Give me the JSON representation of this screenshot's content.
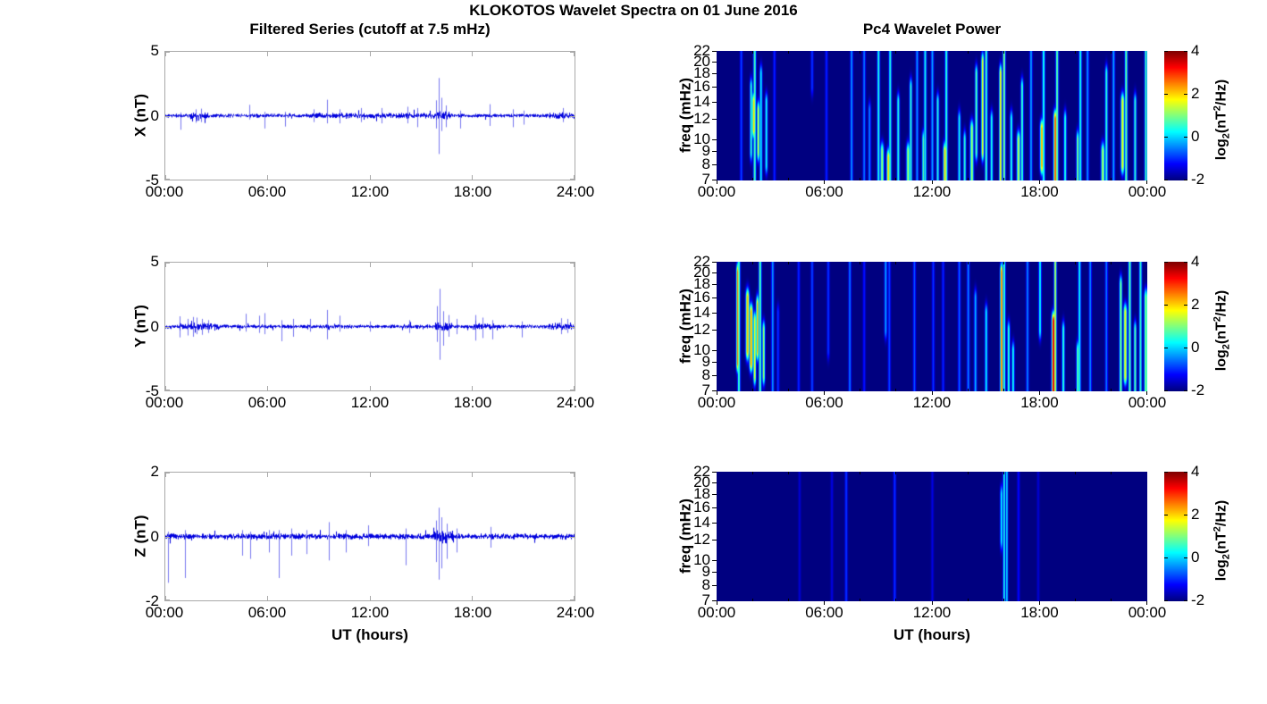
{
  "figure": {
    "title": "KLOKOTOS Wavelet Spectra on 01 June 2016",
    "left_column_title": "Filtered Series (cutoff at 7.5 mHz)",
    "right_column_title": "Pc4 Wavelet Power",
    "xlabel_left": "UT (hours)",
    "xlabel_right": "UT (hours)",
    "colorbar_label": {
      "prefix": "log",
      "sub": "2",
      "mid": "(nT",
      "sup": "2",
      "suffix": "/Hz)"
    },
    "colors": {
      "trace": "#0000dd",
      "spike": "#5050eb",
      "heat_background": "#000090",
      "axis_frame": "#a9a9a9",
      "tick_text": "#000000"
    }
  },
  "chart_data": [
    {
      "type": "line",
      "id": "x-filtered",
      "ylabel": "X (nT)",
      "ylim": [
        -5,
        5
      ],
      "yticks": [
        5,
        0,
        -5
      ],
      "x_range_hours": [
        0,
        24
      ],
      "xticklabels": [
        "00:00",
        "06:00",
        "12:00",
        "18:00",
        "24:00"
      ],
      "seed": 11,
      "noise_amp": 0.09,
      "burst_format": "[t_start_h, t_end_h, amp_factor]",
      "bursts": [
        [
          1.4,
          2.6,
          1.8
        ],
        [
          8.5,
          15.6,
          1.5
        ],
        [
          15.7,
          16.7,
          2.2
        ],
        [
          22.4,
          24,
          1.7
        ]
      ],
      "spike_format": "[t_hours, up_nT, down_nT]",
      "spikes": [
        [
          0.9,
          0.25,
          1.1
        ],
        [
          1.8,
          0.5,
          0.55
        ],
        [
          2.1,
          0.55,
          0.5
        ],
        [
          4.9,
          0.85,
          0.3
        ],
        [
          5.8,
          0.3,
          1.0
        ],
        [
          7.0,
          0.3,
          0.85
        ],
        [
          8.7,
          0.5,
          0.5
        ],
        [
          9.5,
          1.25,
          0.6
        ],
        [
          10.2,
          0.5,
          0.6
        ],
        [
          11.5,
          0.6,
          0.5
        ],
        [
          12.7,
          0.6,
          0.6
        ],
        [
          14.2,
          0.7,
          0.6
        ],
        [
          14.8,
          0.6,
          0.9
        ],
        [
          15.9,
          1.2,
          1.0
        ],
        [
          16.05,
          2.95,
          3.0
        ],
        [
          16.2,
          1.4,
          1.2
        ],
        [
          16.45,
          0.8,
          0.9
        ],
        [
          17.3,
          0.4,
          1.0
        ],
        [
          19.0,
          0.9,
          0.8
        ],
        [
          20.4,
          0.5,
          0.9
        ],
        [
          21.0,
          0.4,
          0.7
        ],
        [
          23.3,
          0.6,
          0.5
        ]
      ]
    },
    {
      "type": "line",
      "id": "y-filtered",
      "ylabel": "Y (nT)",
      "ylim": [
        -5,
        5
      ],
      "yticks": [
        5,
        0,
        -5
      ],
      "x_range_hours": [
        0,
        24
      ],
      "xticklabels": [
        "00:00",
        "06:00",
        "12:00",
        "18:00",
        "24:00"
      ],
      "seed": 22,
      "noise_amp": 0.09,
      "bursts": [
        [
          0.8,
          3.2,
          2.0
        ],
        [
          15.8,
          16.8,
          2.2
        ],
        [
          18.0,
          19.5,
          1.6
        ],
        [
          22.4,
          24,
          1.9
        ]
      ],
      "spikes": [
        [
          0.85,
          0.8,
          0.85
        ],
        [
          1.3,
          0.6,
          0.7
        ],
        [
          1.6,
          0.75,
          0.8
        ],
        [
          1.85,
          0.7,
          0.6
        ],
        [
          2.15,
          0.6,
          0.65
        ],
        [
          2.5,
          0.5,
          0.5
        ],
        [
          4.7,
          1.0,
          0.4
        ],
        [
          5.5,
          0.85,
          0.5
        ],
        [
          5.8,
          1.05,
          0.6
        ],
        [
          6.8,
          0.5,
          1.15
        ],
        [
          7.5,
          0.6,
          0.8
        ],
        [
          8.5,
          0.6,
          0.4
        ],
        [
          9.5,
          1.3,
          1.0
        ],
        [
          10.2,
          0.85,
          0.4
        ],
        [
          12.0,
          0.4,
          0.4
        ],
        [
          14.3,
          0.5,
          0.5
        ],
        [
          15.95,
          1.6,
          1.2
        ],
        [
          16.1,
          2.95,
          2.6
        ],
        [
          16.3,
          1.2,
          1.5
        ],
        [
          16.6,
          0.9,
          0.8
        ],
        [
          17.1,
          0.6,
          0.6
        ],
        [
          18.2,
          0.9,
          1.1
        ],
        [
          18.6,
          0.7,
          0.9
        ],
        [
          19.2,
          0.5,
          1.0
        ],
        [
          20.9,
          0.4,
          0.85
        ],
        [
          23.2,
          0.65,
          0.6
        ],
        [
          23.6,
          0.6,
          0.5
        ]
      ]
    },
    {
      "type": "line",
      "id": "z-filtered",
      "ylabel": "Z (nT)",
      "ylim": [
        -2,
        2
      ],
      "yticks": [
        2,
        0,
        -2
      ],
      "x_range_hours": [
        0,
        24
      ],
      "xticklabels": [
        "00:00",
        "06:00",
        "12:00",
        "18:00",
        "24:00"
      ],
      "seed": 33,
      "noise_amp": 0.055,
      "bursts": [
        [
          15.7,
          16.9,
          2.2
        ]
      ],
      "spikes": [
        [
          0.15,
          0.15,
          1.45
        ],
        [
          1.15,
          0.2,
          1.3
        ],
        [
          4.5,
          0.2,
          0.6
        ],
        [
          5.0,
          0.15,
          0.7
        ],
        [
          6.1,
          0.2,
          0.5
        ],
        [
          6.65,
          0.2,
          1.3
        ],
        [
          7.4,
          0.25,
          0.6
        ],
        [
          8.3,
          0.2,
          0.55
        ],
        [
          9.6,
          0.45,
          0.75
        ],
        [
          10.6,
          0.2,
          0.5
        ],
        [
          11.9,
          0.35,
          0.3
        ],
        [
          14.1,
          0.25,
          0.9
        ],
        [
          15.9,
          0.5,
          0.8
        ],
        [
          16.05,
          0.9,
          1.35
        ],
        [
          16.2,
          0.6,
          1.0
        ],
        [
          16.5,
          0.4,
          0.7
        ],
        [
          17.1,
          0.25,
          0.5
        ],
        [
          19.1,
          0.3,
          0.35
        ]
      ]
    },
    {
      "type": "heatmap",
      "id": "x-wavelet",
      "ylabel": "freq (mHz)",
      "flim": [
        7,
        22
      ],
      "yticks": [
        22,
        20,
        18,
        16,
        14,
        12,
        10,
        9,
        8,
        7
      ],
      "x_range_hours": [
        0,
        24
      ],
      "xticklabels": [
        "00:00",
        "06:00",
        "12:00",
        "18:00",
        "00:00"
      ],
      "clim": [
        -2,
        4
      ],
      "colorbar_ticks": [
        4,
        2,
        0,
        -2
      ],
      "streak_format": "[t_hours, peak_log2_power, f_low_mHz, f_high_mHz, width_min]",
      "streaks": [
        [
          1.35,
          -0.8,
          7,
          22,
          3
        ],
        [
          1.9,
          0.6,
          9,
          16,
          3
        ],
        [
          2.05,
          2.0,
          11,
          14,
          4
        ],
        [
          2.1,
          0.8,
          7,
          22,
          3
        ],
        [
          2.3,
          1.6,
          9,
          13,
          3
        ],
        [
          2.45,
          0.3,
          7,
          18,
          3
        ],
        [
          2.75,
          0.4,
          8,
          14,
          3
        ],
        [
          3.2,
          -1.0,
          7,
          22,
          3
        ],
        [
          5.3,
          -0.9,
          16,
          22,
          3
        ],
        [
          6.1,
          -1.0,
          7,
          22,
          3
        ],
        [
          7.5,
          -0.3,
          7,
          22,
          3
        ],
        [
          8.2,
          -0.5,
          7,
          22,
          3
        ],
        [
          8.5,
          -0.4,
          7,
          13,
          3
        ],
        [
          9.0,
          0.5,
          7,
          22,
          3
        ],
        [
          9.2,
          1.2,
          7,
          9,
          4
        ],
        [
          9.55,
          2.0,
          7,
          8.5,
          4
        ],
        [
          9.65,
          0.5,
          7,
          22,
          3
        ],
        [
          10.1,
          0.5,
          7,
          14,
          3
        ],
        [
          10.65,
          1.3,
          7,
          9,
          4
        ],
        [
          10.8,
          0.6,
          7,
          16,
          3
        ],
        [
          11.15,
          -0.3,
          7,
          22,
          3
        ],
        [
          11.5,
          0.8,
          7,
          10,
          3
        ],
        [
          11.6,
          0.4,
          7,
          22,
          3
        ],
        [
          12.0,
          -0.2,
          7,
          22,
          3
        ],
        [
          12.3,
          0.5,
          7,
          14,
          3
        ],
        [
          12.7,
          2.1,
          7,
          9,
          4
        ],
        [
          12.78,
          0.7,
          7,
          22,
          3
        ],
        [
          13.5,
          0.4,
          7,
          12,
          3
        ],
        [
          13.8,
          0.6,
          7,
          10,
          3
        ],
        [
          14.2,
          1.3,
          7,
          11,
          4
        ],
        [
          14.45,
          0.9,
          9,
          18,
          3
        ],
        [
          14.8,
          1.8,
          9,
          20,
          3
        ],
        [
          15.0,
          0.8,
          7,
          22,
          3
        ],
        [
          15.3,
          0.5,
          7,
          12,
          3
        ],
        [
          15.8,
          2.0,
          7,
          18,
          3
        ],
        [
          16.0,
          1.2,
          7,
          22,
          3
        ],
        [
          16.4,
          0.6,
          7,
          12,
          3
        ],
        [
          16.8,
          1.4,
          7,
          10,
          4
        ],
        [
          17.0,
          0.8,
          7,
          16,
          3
        ],
        [
          17.5,
          -0.2,
          7,
          22,
          3
        ],
        [
          18.1,
          2.4,
          8,
          11,
          4
        ],
        [
          18.2,
          0.6,
          7,
          22,
          3
        ],
        [
          18.85,
          2.9,
          7,
          12,
          4
        ],
        [
          18.95,
          1.0,
          7,
          22,
          3
        ],
        [
          19.4,
          0.6,
          7,
          12,
          3
        ],
        [
          20.1,
          1.2,
          7,
          10,
          3
        ],
        [
          20.25,
          0.5,
          7,
          22,
          3
        ],
        [
          20.65,
          -0.3,
          7,
          22,
          3
        ],
        [
          21.5,
          1.4,
          7,
          9,
          4
        ],
        [
          21.7,
          0.6,
          7,
          18,
          3
        ],
        [
          22.1,
          -0.2,
          7,
          22,
          3
        ],
        [
          22.6,
          1.8,
          8,
          14,
          4
        ],
        [
          22.8,
          1.0,
          7,
          22,
          3
        ],
        [
          23.3,
          0.6,
          7,
          14,
          3
        ],
        [
          23.9,
          0.8,
          7,
          22,
          3
        ]
      ]
    },
    {
      "type": "heatmap",
      "id": "y-wavelet",
      "ylabel": "freq (mHz)",
      "flim": [
        7,
        22
      ],
      "yticks": [
        22,
        20,
        18,
        16,
        14,
        12,
        10,
        9,
        8,
        7
      ],
      "x_range_hours": [
        0,
        24
      ],
      "xticklabels": [
        "00:00",
        "06:00",
        "12:00",
        "18:00",
        "00:00"
      ],
      "clim": [
        -2,
        4
      ],
      "colorbar_ticks": [
        4,
        2,
        0,
        -2
      ],
      "streaks": [
        [
          1.15,
          2.6,
          9,
          20,
          3
        ],
        [
          1.22,
          0.8,
          7,
          22,
          3
        ],
        [
          1.7,
          2.2,
          10,
          16,
          4
        ],
        [
          1.9,
          2.5,
          9,
          14,
          4
        ],
        [
          2.1,
          1.8,
          8,
          13,
          3
        ],
        [
          2.25,
          2.3,
          10,
          15,
          3
        ],
        [
          2.4,
          1.0,
          7,
          22,
          3
        ],
        [
          2.6,
          1.3,
          8,
          12,
          3
        ],
        [
          3.1,
          -0.3,
          7,
          22,
          3
        ],
        [
          3.4,
          -0.9,
          7,
          14,
          3
        ],
        [
          4.55,
          -1.0,
          7,
          22,
          3
        ],
        [
          5.3,
          -0.8,
          7,
          22,
          3
        ],
        [
          6.2,
          -0.9,
          10,
          22,
          3
        ],
        [
          7.4,
          -0.5,
          7,
          22,
          3
        ],
        [
          8.2,
          -1.1,
          7,
          22,
          3
        ],
        [
          9.4,
          -0.2,
          12,
          22,
          3
        ],
        [
          9.6,
          -0.8,
          7,
          22,
          3
        ],
        [
          11.0,
          -0.7,
          7,
          22,
          3
        ],
        [
          12.05,
          -0.9,
          7,
          22,
          3
        ],
        [
          12.6,
          -1.0,
          7,
          22,
          3
        ],
        [
          13.5,
          -0.6,
          7,
          22,
          3
        ],
        [
          14.0,
          -0.4,
          7,
          22,
          3
        ],
        [
          14.4,
          -0.1,
          7,
          16,
          3
        ],
        [
          15.0,
          0.3,
          7,
          14,
          3
        ],
        [
          15.85,
          2.8,
          7,
          20,
          3
        ],
        [
          16.0,
          0.8,
          7,
          22,
          3
        ],
        [
          16.25,
          0.7,
          7,
          12,
          3
        ],
        [
          16.5,
          0.5,
          7,
          10,
          3
        ],
        [
          17.3,
          -0.4,
          7,
          22,
          3
        ],
        [
          18.0,
          0.4,
          12,
          22,
          3
        ],
        [
          18.75,
          3.6,
          7,
          13,
          4
        ],
        [
          18.85,
          1.5,
          7,
          22,
          3
        ],
        [
          19.3,
          0.7,
          7,
          12,
          3
        ],
        [
          20.1,
          1.0,
          7,
          10,
          3
        ],
        [
          20.2,
          0.4,
          7,
          22,
          3
        ],
        [
          20.8,
          -0.4,
          7,
          22,
          3
        ],
        [
          21.7,
          -0.5,
          7,
          22,
          3
        ],
        [
          22.5,
          1.2,
          7,
          18,
          3
        ],
        [
          22.75,
          1.8,
          8,
          14,
          4
        ],
        [
          23.0,
          1.0,
          7,
          22,
          3
        ],
        [
          23.3,
          0.9,
          7,
          12,
          3
        ],
        [
          23.6,
          0.6,
          7,
          22,
          3
        ],
        [
          23.9,
          1.2,
          7,
          16,
          4
        ]
      ]
    },
    {
      "type": "heatmap",
      "id": "z-wavelet",
      "ylabel": "freq (mHz)",
      "flim": [
        7,
        22
      ],
      "yticks": [
        22,
        20,
        18,
        16,
        14,
        12,
        10,
        9,
        8,
        7
      ],
      "x_range_hours": [
        0,
        24
      ],
      "xticklabels": [
        "00:00",
        "06:00",
        "12:00",
        "18:00",
        "00:00"
      ],
      "clim": [
        -2,
        4
      ],
      "colorbar_ticks": [
        4,
        2,
        0,
        -2
      ],
      "streaks": [
        [
          4.6,
          -1.5,
          7,
          22,
          3
        ],
        [
          6.4,
          -1.4,
          7,
          22,
          3
        ],
        [
          7.2,
          -0.9,
          7,
          22,
          3
        ],
        [
          9.9,
          -0.9,
          7,
          22,
          3
        ],
        [
          12.0,
          -1.4,
          7,
          22,
          3
        ],
        [
          15.85,
          0.3,
          12,
          18,
          3
        ],
        [
          16.0,
          0.6,
          7,
          22,
          2.5
        ],
        [
          16.15,
          0.2,
          7,
          22,
          2.5
        ],
        [
          16.8,
          -1.2,
          7,
          22,
          3
        ],
        [
          17.9,
          -1.5,
          7,
          22,
          3
        ]
      ]
    }
  ]
}
